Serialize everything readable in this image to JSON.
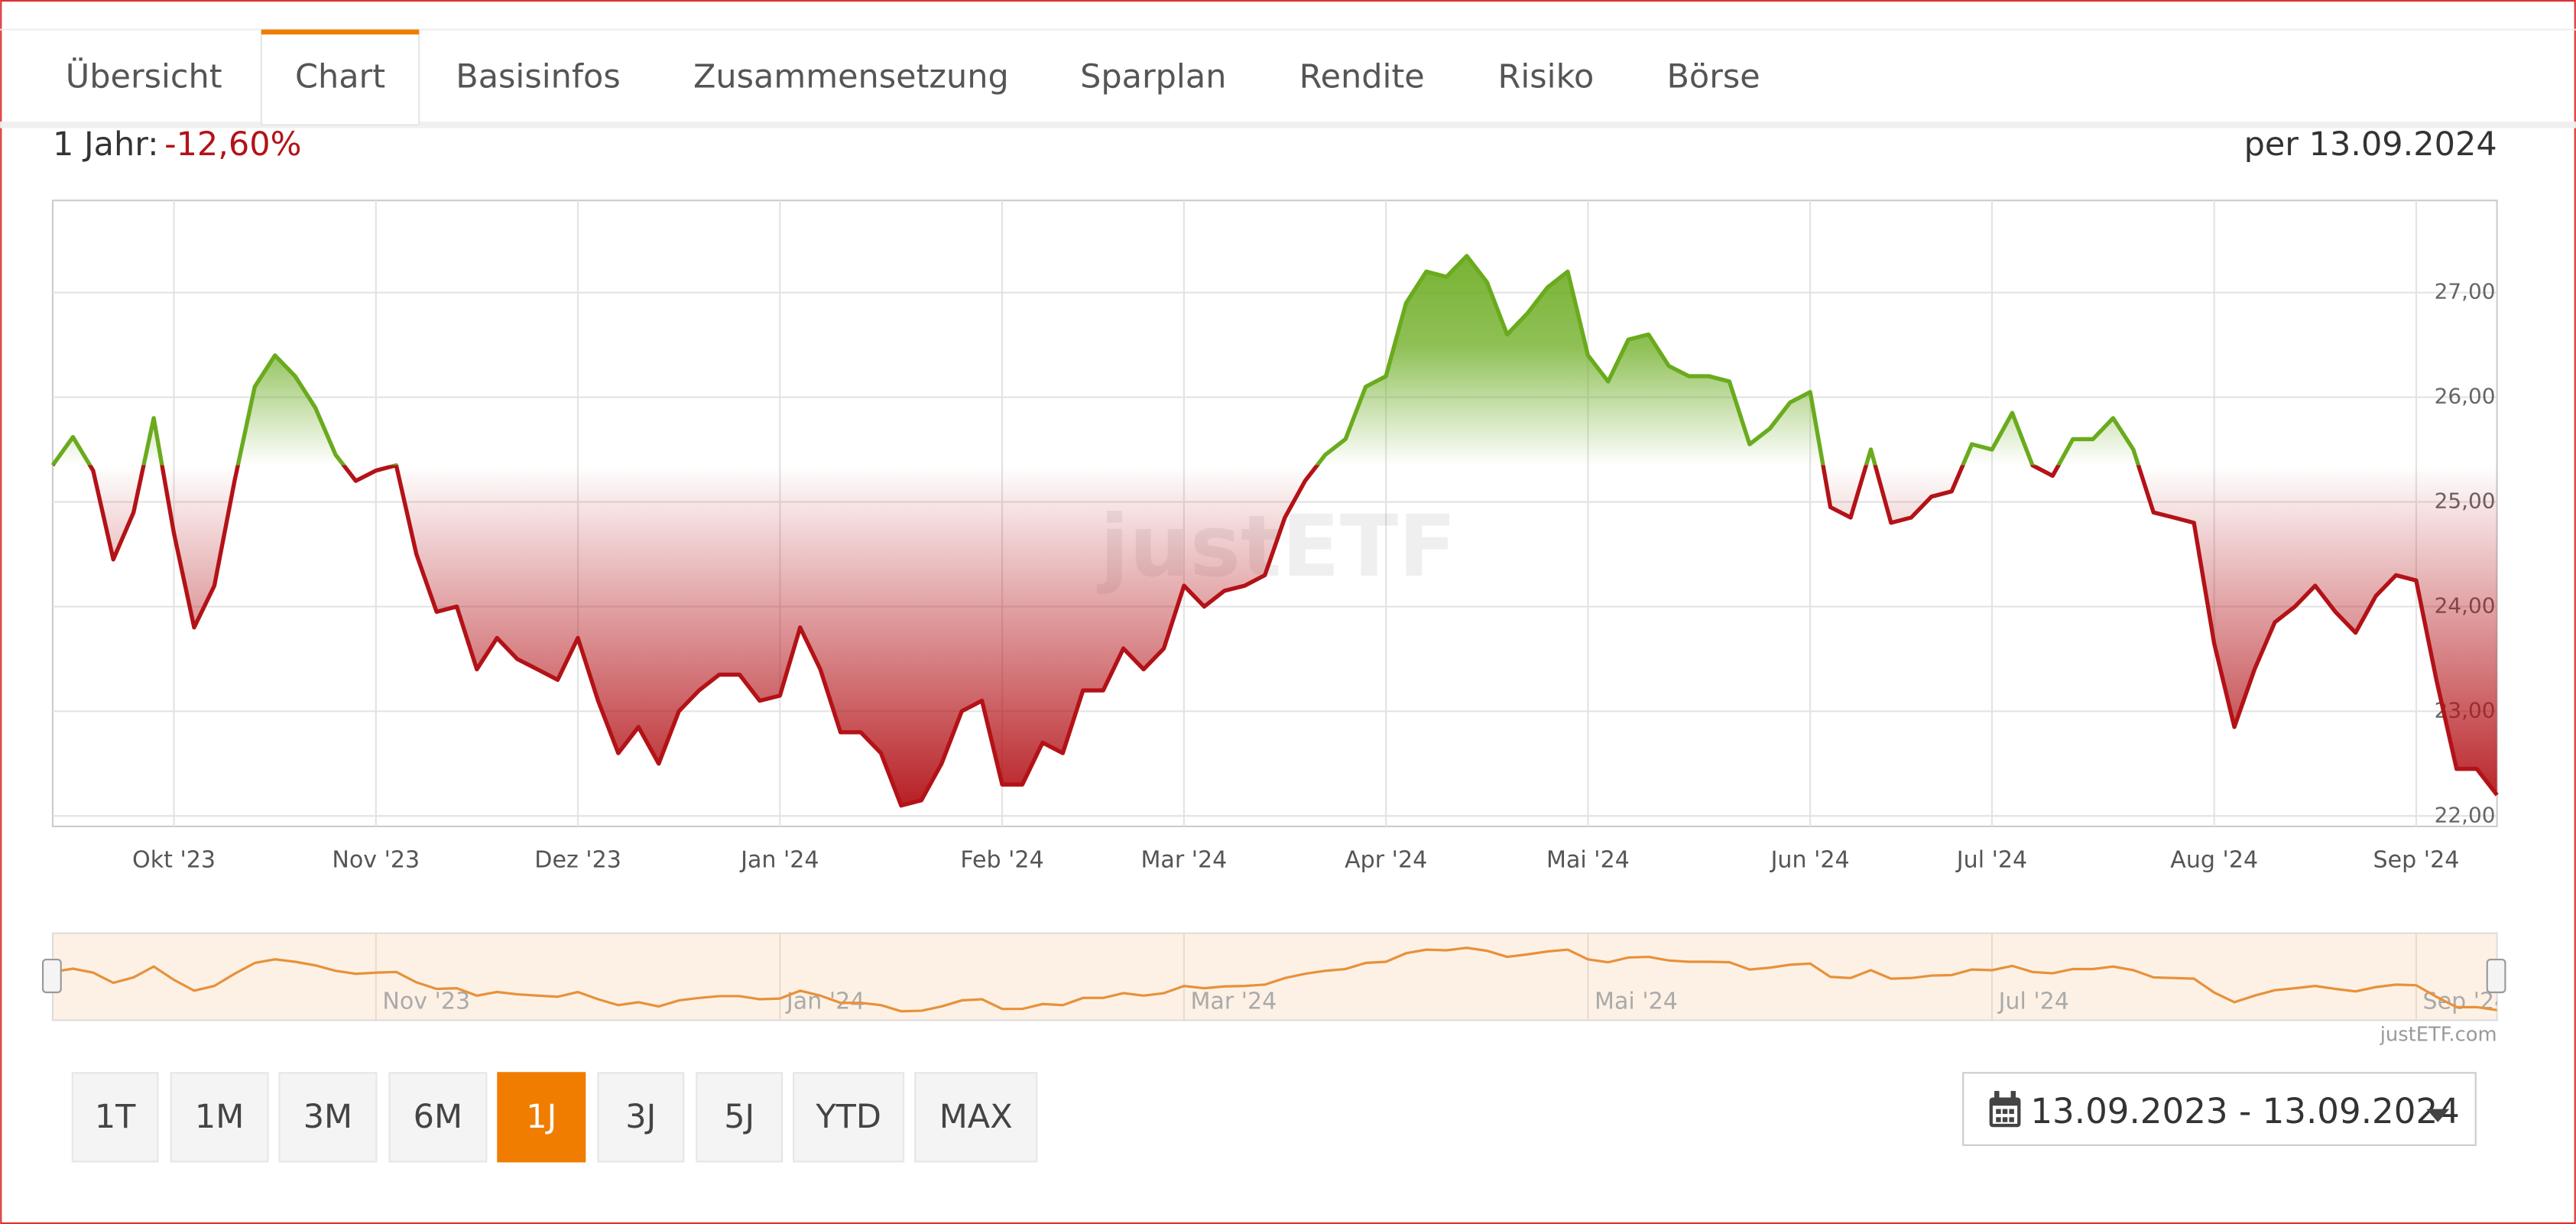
{
  "tabs": [
    "Übersicht",
    "Chart",
    "Basisinfos",
    "Zusammensetzung",
    "Sparplan",
    "Rendite",
    "Risiko",
    "Börse"
  ],
  "active_tab": 1,
  "performance_label": "1 Jahr:",
  "performance_value": "-12,60%",
  "as_of": "per 13.09.2024",
  "chart_data": {
    "type": "line",
    "watermark": "justETF",
    "up_color": "#6aab1e",
    "down_color": "#b31217",
    "grid": true,
    "ylim": [
      21.9,
      27.88
    ],
    "yticks": [
      {
        "value": 22,
        "label": "22,00"
      },
      {
        "value": 23,
        "label": "23,00"
      },
      {
        "value": 24,
        "label": "24,00"
      },
      {
        "value": 25,
        "label": "25,00"
      },
      {
        "value": 26,
        "label": "26,00"
      },
      {
        "value": 27,
        "label": "27,00"
      }
    ],
    "categories": [
      null,
      null,
      null,
      null,
      null,
      null,
      "Okt '23",
      null,
      null,
      null,
      null,
      null,
      null,
      null,
      null,
      null,
      "Nov '23",
      null,
      null,
      null,
      null,
      null,
      null,
      null,
      null,
      null,
      "Dez '23",
      null,
      null,
      null,
      null,
      null,
      null,
      null,
      null,
      null,
      "Jan '24",
      null,
      null,
      null,
      null,
      null,
      null,
      null,
      null,
      null,
      null,
      "Feb '24",
      null,
      null,
      null,
      null,
      null,
      null,
      null,
      null,
      "Mar '24",
      null,
      null,
      null,
      null,
      null,
      null,
      null,
      null,
      null,
      "Apr '24",
      null,
      null,
      null,
      null,
      null,
      null,
      null,
      null,
      null,
      "Mai '24",
      null,
      null,
      null,
      null,
      null,
      null,
      null,
      null,
      null,
      null,
      "Jun '24",
      null,
      null,
      null,
      null,
      null,
      null,
      null,
      null,
      "Jul '24",
      null,
      null,
      null,
      null,
      null,
      null,
      null,
      null,
      null,
      null,
      "Aug '24",
      null,
      null,
      null,
      null,
      null,
      null,
      null,
      null,
      null,
      "Sep '24",
      null,
      null,
      null,
      null
    ],
    "values": [
      25.35,
      25.62,
      25.3,
      24.45,
      24.9,
      25.8,
      24.7,
      23.8,
      24.2,
      25.2,
      26.1,
      26.4,
      26.2,
      25.9,
      25.45,
      25.2,
      25.3,
      25.35,
      24.5,
      23.95,
      24.0,
      23.4,
      23.7,
      23.5,
      23.4,
      23.3,
      23.7,
      23.1,
      22.6,
      22.85,
      22.5,
      23.0,
      23.2,
      23.35,
      23.35,
      23.1,
      23.15,
      23.8,
      23.4,
      22.8,
      22.8,
      22.6,
      22.1,
      22.15,
      22.5,
      23.0,
      23.1,
      22.3,
      22.3,
      22.7,
      22.6,
      23.2,
      23.2,
      23.6,
      23.4,
      23.6,
      24.2,
      24.0,
      24.15,
      24.2,
      24.3,
      24.85,
      25.2,
      25.45,
      25.6,
      26.1,
      26.2,
      26.9,
      27.2,
      27.15,
      27.35,
      27.1,
      26.6,
      26.8,
      27.05,
      27.2,
      26.4,
      26.15,
      26.55,
      26.6,
      26.3,
      26.2,
      26.2,
      26.15,
      25.55,
      25.7,
      25.95,
      26.05,
      24.95,
      24.85,
      25.5,
      24.8,
      24.85,
      25.05,
      25.1,
      25.55,
      25.5,
      25.85,
      25.35,
      25.25,
      25.6,
      25.6,
      25.8,
      25.5,
      24.9,
      24.85,
      24.8,
      23.65,
      22.85,
      23.4,
      23.85,
      24.0,
      24.2,
      23.95,
      23.75,
      24.1,
      24.3,
      24.25,
      23.3,
      22.45,
      22.45,
      22.2
    ]
  },
  "navigator": {
    "color": "#e8913a",
    "labels": [
      "Nov '23",
      "Jan '24",
      "Mar '24",
      "Mai '24",
      "Jul '24",
      "Sep '24"
    ]
  },
  "source": "justETF.com",
  "range_buttons": [
    "1T",
    "1M",
    "3M",
    "6M",
    "1J",
    "3J",
    "5J",
    "YTD",
    "MAX"
  ],
  "active_range": 4,
  "date_range": "13.09.2023 - 13.09.2024"
}
